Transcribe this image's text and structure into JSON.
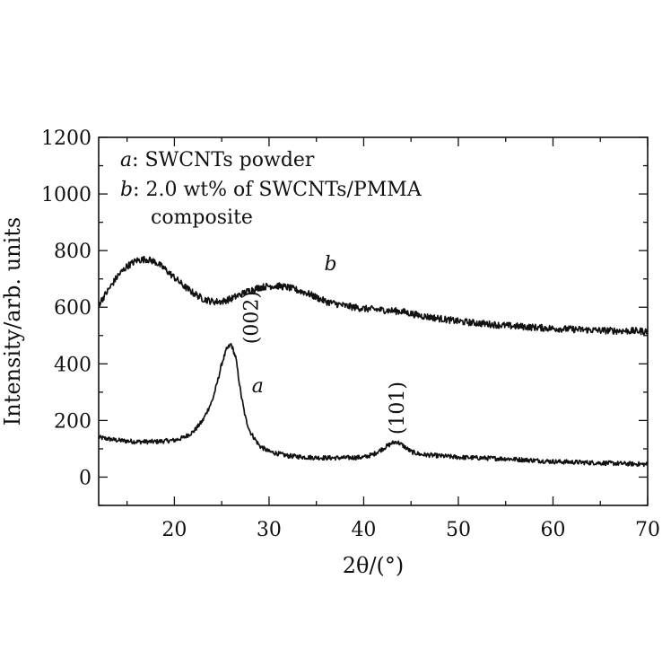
{
  "chart_data": {
    "type": "line",
    "xlabel": "2θ/(°)",
    "ylabel": "Intensity/arb. units",
    "xlim": [
      12,
      70
    ],
    "ylim": [
      -100,
      1200
    ],
    "x_ticks": [
      20,
      30,
      40,
      50,
      60,
      70
    ],
    "x_tick_labels": [
      "20",
      "30",
      "40",
      "50",
      "60",
      "70"
    ],
    "y_ticks": [
      0,
      200,
      400,
      600,
      800,
      1000,
      1200
    ],
    "y_tick_labels": [
      "0",
      "200",
      "400",
      "600",
      "800",
      "1000",
      "1200"
    ],
    "grid": false,
    "legend": {
      "placement": "top-left",
      "entries": [
        {
          "key": "a",
          "text": ": SWCNTs powder"
        },
        {
          "key": "b",
          "text": ": 2.0 wt% of SWCNTs/PMMA",
          "continuation": "composite"
        }
      ]
    },
    "series": [
      {
        "name": "a",
        "x": [
          12,
          14,
          16,
          18,
          20,
          21,
          22,
          23,
          24,
          24.5,
          25,
          25.5,
          26,
          26.5,
          27,
          27.5,
          28,
          29,
          30,
          32,
          34,
          36,
          38,
          40,
          41,
          42,
          43,
          43.5,
          44,
          45,
          46,
          48,
          50,
          55,
          60,
          65,
          70
        ],
        "y": [
          140,
          130,
          125,
          125,
          130,
          140,
          160,
          200,
          270,
          330,
          400,
          450,
          470,
          420,
          300,
          210,
          160,
          110,
          90,
          75,
          70,
          68,
          68,
          70,
          80,
          100,
          120,
          125,
          115,
          90,
          80,
          75,
          70,
          65,
          55,
          50,
          45
        ]
      },
      {
        "name": "b",
        "x": [
          12,
          13,
          14,
          15,
          16,
          17,
          18,
          19,
          20,
          21,
          22,
          23,
          24,
          25,
          26,
          27,
          28,
          29,
          30,
          31,
          32,
          33,
          34,
          35,
          36,
          38,
          40,
          42,
          44,
          46,
          48,
          50,
          55,
          60,
          65,
          70
        ],
        "y": [
          610,
          660,
          710,
          745,
          765,
          770,
          760,
          735,
          705,
          675,
          650,
          630,
          620,
          620,
          630,
          645,
          660,
          670,
          675,
          675,
          670,
          660,
          650,
          635,
          620,
          605,
          595,
          590,
          585,
          570,
          560,
          550,
          535,
          525,
          518,
          515
        ]
      }
    ],
    "annotations": [
      {
        "text": "(002)",
        "x": 28.8,
        "y": 470,
        "rotation": -90
      },
      {
        "text": "(101)",
        "x": 44.2,
        "y": 150,
        "rotation": -90
      },
      {
        "text": "a",
        "x": 28.8,
        "y": 300,
        "italic": true
      },
      {
        "text": "b",
        "x": 36.5,
        "y": 730,
        "italic": true
      }
    ]
  }
}
